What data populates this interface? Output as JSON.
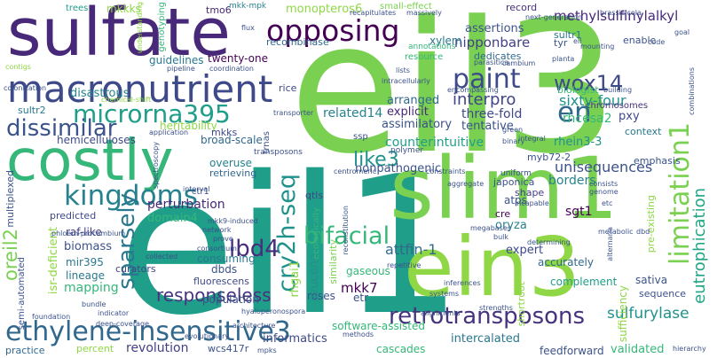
{
  "words": [
    {
      "text": "eil3",
      "color": "#7ad151"
    },
    {
      "text": "eil1",
      "color": "#1f9e89"
    },
    {
      "text": "sulfate",
      "color": "#482878"
    },
    {
      "text": "slim1",
      "color": "#7ad151"
    },
    {
      "text": "ein3",
      "color": "#8fd744"
    },
    {
      "text": "costly",
      "color": "#35b779"
    },
    {
      "text": "macronutrient",
      "color": "#3e4989"
    },
    {
      "text": "ethylene-insensitive3",
      "color": "#31688e"
    },
    {
      "text": "kingdoms",
      "color": "#26828e"
    },
    {
      "text": "microrna395",
      "color": "#1f9e89"
    },
    {
      "text": "paint",
      "color": "#3e4a89"
    },
    {
      "text": "opposing",
      "color": "#440154"
    },
    {
      "text": "dissimilar",
      "color": "#3b528b"
    },
    {
      "text": "cry2h-seq",
      "color": "#21918c"
    },
    {
      "text": "retrotransposons",
      "color": "#46327e"
    },
    {
      "text": "bifacial",
      "color": "#35b779"
    },
    {
      "text": "wox14",
      "color": "#3e4989"
    },
    {
      "text": "limitation1",
      "color": "#7ad151"
    },
    {
      "text": "sparsely",
      "color": "#2a788e"
    },
    {
      "text": "en",
      "color": "#31688e"
    },
    {
      "text": "lbd4",
      "color": "#472d7b"
    },
    {
      "text": "like3",
      "color": "#21918c"
    },
    {
      "text": "sulfurylase",
      "color": "#21918c"
    },
    {
      "text": "oreil2",
      "color": "#7ad151"
    },
    {
      "text": "responseless",
      "color": "#46327e"
    },
    {
      "text": "eutrophication",
      "color": "#21a685"
    },
    {
      "text": "methylsulfinylalkyl",
      "color": "#482878"
    },
    {
      "text": "interpro",
      "color": "#414487"
    },
    {
      "text": "unisequences",
      "color": "#3b528b"
    },
    {
      "text": "disastrous",
      "color": "#26828e"
    },
    {
      "text": "mkkks",
      "color": "#8fd744"
    },
    {
      "text": "trees",
      "color": "#1f9e89"
    },
    {
      "text": "tmo6",
      "color": "#482878"
    },
    {
      "text": "monopteros6",
      "color": "#8fd744"
    },
    {
      "text": "mkk-mpk",
      "color": "#26828e"
    },
    {
      "text": "small-effect",
      "color": "#7ad151"
    },
    {
      "text": "record",
      "color": "#472d7b"
    },
    {
      "text": "genotyping",
      "color": "#35b779"
    },
    {
      "text": "assertions",
      "color": "#3b528b"
    },
    {
      "text": "nipponbare",
      "color": "#433e85"
    },
    {
      "text": "dedicates",
      "color": "#31688e"
    },
    {
      "text": "recombinase",
      "color": "#31688e"
    },
    {
      "text": "xylem",
      "color": "#2a788e"
    },
    {
      "text": "twenty-one",
      "color": "#440154"
    },
    {
      "text": "guidelines",
      "color": "#2a788e"
    },
    {
      "text": "arranged",
      "color": "#31688e"
    },
    {
      "text": "sixty-four",
      "color": "#21918c"
    },
    {
      "text": "related14",
      "color": "#26828e"
    },
    {
      "text": "explicit",
      "color": "#482878"
    },
    {
      "text": "three-fold",
      "color": "#3e4989"
    },
    {
      "text": "assimilatory",
      "color": "#3b528b"
    },
    {
      "text": "tentative",
      "color": "#3b528b"
    },
    {
      "text": "rhcesa2",
      "color": "#35b779"
    },
    {
      "text": "pxy",
      "color": "#3e4989"
    },
    {
      "text": "heritability",
      "color": "#8fd744"
    },
    {
      "text": "mkks",
      "color": "#3e4989"
    },
    {
      "text": "hemicelluloses",
      "color": "#3e4989"
    },
    {
      "text": "broad-scale",
      "color": "#31688e"
    },
    {
      "text": "sultr2",
      "color": "#2a788e"
    },
    {
      "text": "counterintuitive",
      "color": "#1f9e89"
    },
    {
      "text": "rhein3-3",
      "color": "#21918c"
    },
    {
      "text": "myb72-2",
      "color": "#3b528b"
    },
    {
      "text": "overuse",
      "color": "#26828e"
    },
    {
      "text": "retrieving",
      "color": "#31688e"
    },
    {
      "text": "nonpathogenic",
      "color": "#3b528b"
    },
    {
      "text": "borders",
      "color": "#26828e"
    },
    {
      "text": "japonica",
      "color": "#3b528b"
    },
    {
      "text": "sgt1",
      "color": "#440154"
    },
    {
      "text": "perturbation",
      "color": "#482878"
    },
    {
      "text": "domain4",
      "color": "#35b779"
    },
    {
      "text": "atps",
      "color": "#3b528b"
    },
    {
      "text": "cre",
      "color": "#440154"
    },
    {
      "text": "oryza",
      "color": "#26828e"
    },
    {
      "text": "raf-like",
      "color": "#433e85"
    },
    {
      "text": "biomass",
      "color": "#3b528b"
    },
    {
      "text": "mir395",
      "color": "#2a788e"
    },
    {
      "text": "lineage",
      "color": "#2a788e"
    },
    {
      "text": "curators",
      "color": "#414487"
    },
    {
      "text": "mapping",
      "color": "#35b779"
    },
    {
      "text": "consuming",
      "color": "#2a788e"
    },
    {
      "text": "population",
      "color": "#3b528b"
    },
    {
      "text": "fluorescens",
      "color": "#3e4989"
    },
    {
      "text": "mkk7",
      "color": "#440154"
    },
    {
      "text": "attfin-1",
      "color": "#31688e"
    },
    {
      "text": "expert",
      "color": "#3e4989"
    },
    {
      "text": "accurately",
      "color": "#31688e"
    },
    {
      "text": "sativa",
      "color": "#3b528b"
    },
    {
      "text": "complement",
      "color": "#1f9e89"
    },
    {
      "text": "sequence",
      "color": "#3b528b"
    },
    {
      "text": "etr",
      "color": "#3b528b"
    },
    {
      "text": "revolution",
      "color": "#433e85"
    },
    {
      "text": "informatics",
      "color": "#3e4989"
    },
    {
      "text": "software-assisted",
      "color": "#35b779"
    },
    {
      "text": "intercalated",
      "color": "#2a788e"
    },
    {
      "text": "feedforward",
      "color": "#3b528b"
    },
    {
      "text": "validated",
      "color": "#35b779"
    },
    {
      "text": "cascades",
      "color": "#35b779"
    },
    {
      "text": "practice",
      "color": "#31688e"
    },
    {
      "text": "percent",
      "color": "#8fd744"
    },
    {
      "text": "wcs417r",
      "color": "#3b528b"
    },
    {
      "text": "sultr1",
      "color": "#2a788e"
    },
    {
      "text": "biologist",
      "color": "#35b779"
    },
    {
      "text": "context",
      "color": "#2a788e"
    },
    {
      "text": "chromosomes",
      "color": "#46327e"
    },
    {
      "text": "emphasis",
      "color": "#3b528b"
    },
    {
      "text": "enable",
      "color": "#3b528b"
    },
    {
      "text": "tyr",
      "color": "#3b528b"
    },
    {
      "text": "resource",
      "color": "#35b779"
    },
    {
      "text": "annotations",
      "color": "#35b779"
    },
    {
      "text": "rice",
      "color": "#3e4989"
    },
    {
      "text": "ssp",
      "color": "#3b528b"
    },
    {
      "text": "trnas",
      "color": "#3b528b"
    },
    {
      "text": "gaseous",
      "color": "#35b779"
    },
    {
      "text": "roses",
      "color": "#3b528b"
    },
    {
      "text": "similarity",
      "color": "#7ad151"
    },
    {
      "text": "azucena",
      "color": "#21918c"
    },
    {
      "text": "ecologically",
      "color": "#35b779"
    },
    {
      "text": "qtls",
      "color": "#3e4989"
    },
    {
      "text": "multiplexed",
      "color": "#3b528b"
    },
    {
      "text": "predicted",
      "color": "#3e4989"
    },
    {
      "text": "isr-deficient",
      "color": "#8fd744"
    },
    {
      "text": "semi-automated",
      "color": "#3b528b"
    },
    {
      "text": "shape",
      "color": "#433e85"
    },
    {
      "text": "uniform",
      "color": "#3b528b"
    },
    {
      "text": "shortroot",
      "color": "#8fd744"
    },
    {
      "text": "sufficiency",
      "color": "#8fd744"
    },
    {
      "text": "pre-existing",
      "color": "#8fd744"
    },
    {
      "text": "dbds",
      "color": "#3b528b"
    },
    {
      "text": "rhgai1",
      "color": "#8fd744"
    },
    {
      "text": "ctr1",
      "color": "#3b528b"
    },
    {
      "text": "colonization",
      "color": "#3b528b"
    },
    {
      "text": "transposons",
      "color": "#3b528b"
    },
    {
      "text": "polymer",
      "color": "#3b528b"
    },
    {
      "text": "green",
      "color": "#3b528b"
    },
    {
      "text": "binary",
      "color": "#3b528b"
    },
    {
      "text": "integral",
      "color": "#3b528b"
    },
    {
      "text": "understanding",
      "color": "#8fd744"
    },
    {
      "text": "recapitulates",
      "color": "#3b528b"
    },
    {
      "text": "massively",
      "color": "#3b528b"
    },
    {
      "text": "flux",
      "color": "#3b528b"
    },
    {
      "text": "next-generation",
      "color": "#3b528b"
    },
    {
      "text": "brassicicola",
      "color": "#3b528b"
    },
    {
      "text": "goal",
      "color": "#3b528b"
    },
    {
      "text": "mounting",
      "color": "#3b528b"
    },
    {
      "text": "cambium",
      "color": "#3b528b"
    },
    {
      "text": "code",
      "color": "#3b528b"
    },
    {
      "text": "parasitica",
      "color": "#3b528b"
    },
    {
      "text": "lists",
      "color": "#3b528b"
    },
    {
      "text": "intracellularly",
      "color": "#3b528b"
    },
    {
      "text": "encompassing",
      "color": "#3b528b"
    },
    {
      "text": "building",
      "color": "#3b528b"
    },
    {
      "text": "combinations",
      "color": "#3b528b"
    },
    {
      "text": "pipeline",
      "color": "#3b528b"
    },
    {
      "text": "coordination",
      "color": "#3b528b"
    },
    {
      "text": "application",
      "color": "#3b528b"
    },
    {
      "text": "chemical-shift",
      "color": "#8fd744"
    },
    {
      "text": "transporter",
      "color": "#3b528b"
    },
    {
      "text": "spectroscopy",
      "color": "#3b528b"
    },
    {
      "text": "architecture",
      "color": "#3b528b"
    },
    {
      "text": "foundation",
      "color": "#3b528b"
    },
    {
      "text": "bundle",
      "color": "#3b528b"
    },
    {
      "text": "deep-coverage",
      "color": "#3b528b"
    },
    {
      "text": "indicator",
      "color": "#3b528b"
    },
    {
      "text": "evolutionary",
      "color": "#3b528b"
    },
    {
      "text": "mpks",
      "color": "#3b528b"
    },
    {
      "text": "phloem-procambium",
      "color": "#3b528b"
    },
    {
      "text": "interval",
      "color": "#3b528b"
    },
    {
      "text": "network",
      "color": "#3b528b"
    },
    {
      "text": "mkk9-induced",
      "color": "#3b528b"
    },
    {
      "text": "collected",
      "color": "#3b528b"
    },
    {
      "text": "hyaloperonospora",
      "color": "#3b528b"
    },
    {
      "text": "prove",
      "color": "#3b528b"
    },
    {
      "text": "consortium",
      "color": "#3b528b"
    },
    {
      "text": "reconstitution",
      "color": "#3b528b"
    },
    {
      "text": "repetitive",
      "color": "#3b528b"
    },
    {
      "text": "methods",
      "color": "#3b528b"
    },
    {
      "text": "alignments",
      "color": "#3b528b"
    },
    {
      "text": "strengths",
      "color": "#3b528b"
    },
    {
      "text": "inferences",
      "color": "#3b528b"
    },
    {
      "text": "systems",
      "color": "#3b528b"
    },
    {
      "text": "centromeric",
      "color": "#3b528b"
    },
    {
      "text": "constraints",
      "color": "#3b528b"
    },
    {
      "text": "aggregate",
      "color": "#3b528b"
    },
    {
      "text": "incapable",
      "color": "#3b528b"
    },
    {
      "text": "consists",
      "color": "#3b528b"
    },
    {
      "text": "genome",
      "color": "#3b528b"
    },
    {
      "text": "bulk",
      "color": "#3b528b"
    },
    {
      "text": "megabases",
      "color": "#3b528b"
    },
    {
      "text": "metabolic",
      "color": "#3b528b"
    },
    {
      "text": "alternaria",
      "color": "#3b528b"
    },
    {
      "text": "dbd",
      "color": "#3b528b"
    },
    {
      "text": "determining",
      "color": "#3b528b"
    },
    {
      "text": "hierarchy",
      "color": "#3b528b"
    },
    {
      "text": "planta",
      "color": "#3b528b"
    },
    {
      "text": "eil",
      "color": "#3b528b"
    },
    {
      "text": "etc",
      "color": "#3b528b"
    },
    {
      "text": "contigs",
      "color": "#8fd744"
    }
  ]
}
